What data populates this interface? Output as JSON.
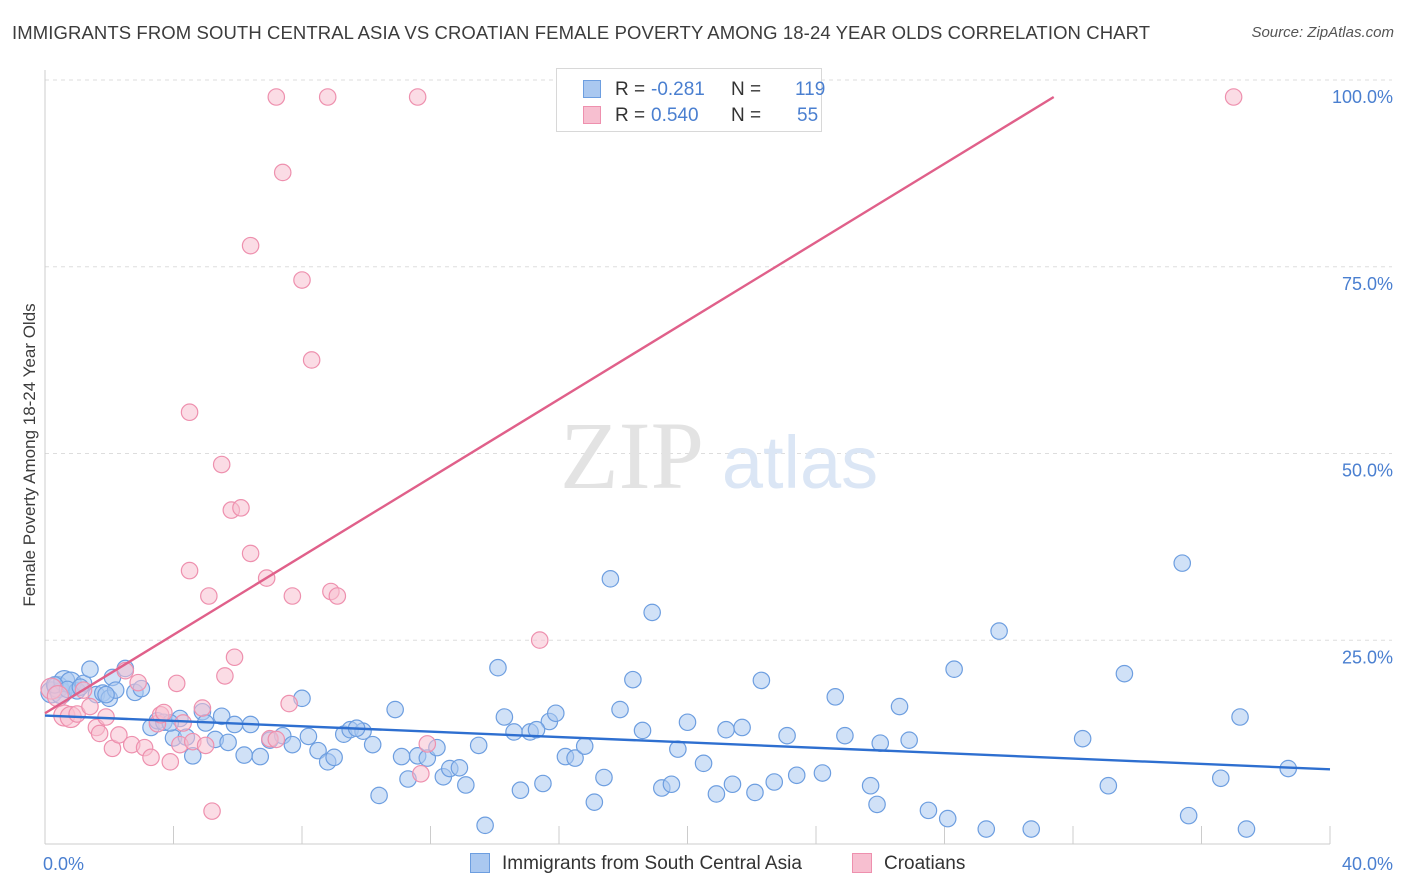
{
  "title": "IMMIGRANTS FROM SOUTH CENTRAL ASIA VS CROATIAN FEMALE POVERTY AMONG 18-24 YEAR OLDS CORRELATION CHART",
  "source": "Source: ZipAtlas.com",
  "watermark": {
    "zip": "ZIP",
    "atlas": "atlas"
  },
  "colors": {
    "blue_fill": "#aac8f0",
    "blue_stroke": "#6d9ee0",
    "blue_line": "#2e6fd0",
    "pink_fill": "#f7bfd0",
    "pink_stroke": "#ee90ae",
    "pink_line": "#e0608a",
    "tick_text": "#4a7fd0",
    "grid": "#dddddd"
  },
  "legend": {
    "r_label": "R =",
    "n_label": "N =",
    "rows": [
      {
        "r": "-0.281",
        "n": "119"
      },
      {
        "r": "0.540",
        "n": "55"
      }
    ]
  },
  "bottom_legend": [
    "Immigrants from South Central Asia",
    "Croatians"
  ],
  "chart_data": {
    "type": "scatter",
    "title": "IMMIGRANTS FROM SOUTH CENTRAL ASIA VS CROATIAN FEMALE POVERTY AMONG 18-24 YEAR OLDS CORRELATION CHART",
    "ylabel": "Female Poverty Among 18-24 Year Olds",
    "xlabel": "",
    "xlim": [
      0,
      40
    ],
    "ylim": [
      0,
      102
    ],
    "x_tick_labels": [
      {
        "value": 0,
        "label": "0.0%"
      },
      {
        "value": 40,
        "label": "40.0%"
      }
    ],
    "y_tick_labels": [
      {
        "value": 25,
        "label": "25.0%"
      },
      {
        "value": 50,
        "label": "50.0%"
      },
      {
        "value": 75,
        "label": "75.0%"
      },
      {
        "value": 100,
        "label": "100.0%"
      }
    ],
    "grid": "horizontal dashed",
    "legend_position": "top-center",
    "series": [
      {
        "name": "Immigrants from South Central Asia",
        "color": "#aac8f0",
        "r": -0.281,
        "n": 119,
        "trend": {
          "x": [
            0,
            40
          ],
          "y": [
            17.2,
            10.0
          ]
        },
        "points": [
          [
            0.2,
            20.3
          ],
          [
            0.4,
            21.0
          ],
          [
            0.5,
            20.2
          ],
          [
            0.6,
            21.8
          ],
          [
            0.8,
            21.6
          ],
          [
            1.0,
            20.5
          ],
          [
            1.2,
            21.5
          ],
          [
            1.4,
            23.4
          ],
          [
            1.6,
            20.0
          ],
          [
            1.8,
            20.2
          ],
          [
            2.0,
            19.5
          ],
          [
            2.1,
            22.3
          ],
          [
            2.2,
            20.6
          ],
          [
            2.5,
            23.5
          ],
          [
            2.8,
            20.3
          ],
          [
            3.0,
            20.8
          ],
          [
            3.3,
            15.6
          ],
          [
            3.5,
            16.5
          ],
          [
            3.7,
            16.3
          ],
          [
            4.0,
            14.2
          ],
          [
            4.2,
            16.8
          ],
          [
            4.4,
            14.3
          ],
          [
            4.6,
            11.8
          ],
          [
            4.9,
            17.7
          ],
          [
            5.0,
            16.2
          ],
          [
            5.3,
            14.0
          ],
          [
            5.5,
            17.1
          ],
          [
            5.7,
            13.6
          ],
          [
            5.9,
            16.0
          ],
          [
            6.2,
            11.9
          ],
          [
            6.4,
            16.0
          ],
          [
            6.7,
            11.7
          ],
          [
            7.0,
            13.9
          ],
          [
            7.4,
            14.5
          ],
          [
            7.7,
            13.3
          ],
          [
            8.0,
            19.5
          ],
          [
            8.2,
            14.4
          ],
          [
            8.5,
            12.5
          ],
          [
            8.8,
            11.0
          ],
          [
            9.0,
            11.6
          ],
          [
            9.3,
            14.7
          ],
          [
            9.5,
            15.3
          ],
          [
            9.9,
            15.1
          ],
          [
            10.2,
            13.3
          ],
          [
            10.4,
            6.5
          ],
          [
            10.9,
            18.0
          ],
          [
            11.1,
            11.7
          ],
          [
            11.3,
            8.7
          ],
          [
            11.6,
            11.8
          ],
          [
            11.9,
            11.5
          ],
          [
            12.2,
            12.9
          ],
          [
            12.4,
            9.0
          ],
          [
            12.6,
            10.1
          ],
          [
            12.9,
            10.2
          ],
          [
            13.1,
            7.9
          ],
          [
            13.5,
            13.2
          ],
          [
            13.7,
            2.5
          ],
          [
            14.1,
            23.6
          ],
          [
            14.3,
            17.0
          ],
          [
            14.6,
            15.0
          ],
          [
            14.8,
            7.2
          ],
          [
            15.1,
            15.0
          ],
          [
            15.5,
            8.1
          ],
          [
            15.7,
            16.4
          ],
          [
            15.9,
            17.5
          ],
          [
            16.2,
            11.7
          ],
          [
            16.5,
            11.5
          ],
          [
            16.8,
            13.1
          ],
          [
            17.1,
            5.6
          ],
          [
            17.4,
            8.9
          ],
          [
            17.6,
            35.5
          ],
          [
            17.9,
            18.0
          ],
          [
            18.3,
            22.0
          ],
          [
            18.6,
            15.2
          ],
          [
            18.9,
            31.0
          ],
          [
            19.2,
            7.5
          ],
          [
            19.5,
            8.0
          ],
          [
            19.7,
            12.7
          ],
          [
            20.0,
            16.3
          ],
          [
            20.5,
            10.8
          ],
          [
            20.9,
            6.7
          ],
          [
            21.2,
            15.3
          ],
          [
            21.4,
            8.0
          ],
          [
            21.7,
            15.6
          ],
          [
            22.1,
            6.9
          ],
          [
            22.3,
            21.9
          ],
          [
            22.7,
            8.3
          ],
          [
            23.1,
            14.5
          ],
          [
            23.4,
            9.2
          ],
          [
            24.2,
            9.5
          ],
          [
            24.6,
            19.7
          ],
          [
            24.9,
            14.5
          ],
          [
            25.7,
            7.8
          ],
          [
            25.9,
            5.3
          ],
          [
            26.6,
            18.4
          ],
          [
            26.9,
            13.9
          ],
          [
            27.5,
            4.5
          ],
          [
            28.1,
            3.4
          ],
          [
            28.3,
            23.4
          ],
          [
            29.3,
            2.0
          ],
          [
            29.7,
            28.5
          ],
          [
            30.7,
            2.0
          ],
          [
            32.3,
            14.1
          ],
          [
            33.1,
            7.8
          ],
          [
            33.6,
            22.8
          ],
          [
            35.4,
            37.6
          ],
          [
            35.6,
            3.8
          ],
          [
            36.6,
            8.8
          ],
          [
            37.2,
            17.0
          ],
          [
            37.4,
            2.0
          ],
          [
            38.7,
            10.1
          ],
          [
            0.3,
            21.3
          ],
          [
            0.7,
            20.7
          ],
          [
            1.1,
            21.0
          ],
          [
            1.9,
            20.0
          ],
          [
            3.9,
            16.2
          ],
          [
            9.7,
            15.5
          ],
          [
            15.3,
            15.3
          ],
          [
            26.0,
            13.5
          ]
        ]
      },
      {
        "name": "Croatians",
        "color": "#f7bfd0",
        "r": 0.54,
        "n": 55,
        "trend": {
          "x": [
            0,
            31.4
          ],
          "y": [
            17.5,
            100
          ]
        },
        "points": [
          [
            0.2,
            20.8
          ],
          [
            0.4,
            19.8
          ],
          [
            0.6,
            17.2
          ],
          [
            0.8,
            17.0
          ],
          [
            1.0,
            17.4
          ],
          [
            1.2,
            20.6
          ],
          [
            1.4,
            18.4
          ],
          [
            1.6,
            15.6
          ],
          [
            1.7,
            14.8
          ],
          [
            1.9,
            17.0
          ],
          [
            2.1,
            12.8
          ],
          [
            2.3,
            14.6
          ],
          [
            2.5,
            23.2
          ],
          [
            2.7,
            13.3
          ],
          [
            2.9,
            21.6
          ],
          [
            3.1,
            12.9
          ],
          [
            3.3,
            11.6
          ],
          [
            3.5,
            16.1
          ],
          [
            3.6,
            17.3
          ],
          [
            3.7,
            17.6
          ],
          [
            3.9,
            11.0
          ],
          [
            4.1,
            21.5
          ],
          [
            4.2,
            13.3
          ],
          [
            4.3,
            16.2
          ],
          [
            4.5,
            57.8
          ],
          [
            4.5,
            36.6
          ],
          [
            4.6,
            13.7
          ],
          [
            4.9,
            18.2
          ],
          [
            5.0,
            13.2
          ],
          [
            5.1,
            33.2
          ],
          [
            5.2,
            4.4
          ],
          [
            5.5,
            50.8
          ],
          [
            5.6,
            22.5
          ],
          [
            5.8,
            44.7
          ],
          [
            5.9,
            25.0
          ],
          [
            6.1,
            45.0
          ],
          [
            6.4,
            38.9
          ],
          [
            6.4,
            80.1
          ],
          [
            6.9,
            35.6
          ],
          [
            7.0,
            14.1
          ],
          [
            7.2,
            100
          ],
          [
            7.4,
            89.9
          ],
          [
            7.6,
            18.8
          ],
          [
            7.7,
            33.2
          ],
          [
            8.0,
            75.5
          ],
          [
            8.3,
            64.8
          ],
          [
            8.8,
            100
          ],
          [
            8.9,
            33.8
          ],
          [
            9.1,
            33.2
          ],
          [
            11.6,
            100
          ],
          [
            11.7,
            9.4
          ],
          [
            11.9,
            13.4
          ],
          [
            15.4,
            27.3
          ],
          [
            37.0,
            100
          ],
          [
            7.2,
            14.0
          ]
        ]
      }
    ]
  }
}
